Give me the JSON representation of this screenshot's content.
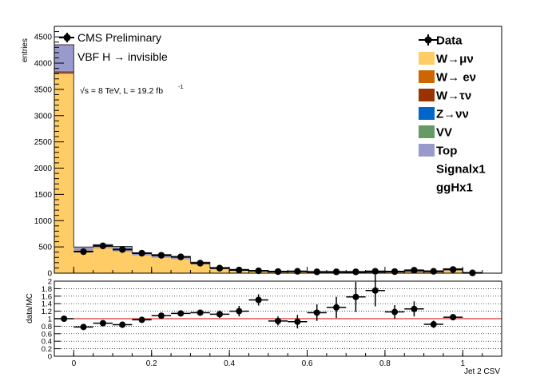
{
  "chart_data": [
    {
      "type": "bar",
      "stacked": true,
      "ylabel": "entries",
      "yticks": [
        0,
        500,
        1000,
        1500,
        2000,
        2500,
        3000,
        3500,
        4000,
        4500
      ],
      "ylim": [
        0,
        4700
      ],
      "xlim": [
        -0.05,
        1.1
      ],
      "bin_edges": [
        -0.05,
        0.0,
        0.05,
        0.1,
        0.15,
        0.2,
        0.25,
        0.3,
        0.35,
        0.4,
        0.45,
        0.5,
        0.55,
        0.6,
        0.65,
        0.7,
        0.75,
        0.8,
        0.85,
        0.9,
        0.95,
        1.0,
        1.05,
        1.1
      ],
      "series": [
        {
          "name": "W→μν",
          "color": "#ffcc66",
          "values": [
            3800,
            430,
            480,
            420,
            340,
            300,
            270,
            170,
            80,
            55,
            35,
            25,
            22,
            18,
            15,
            13,
            10,
            15,
            25,
            20,
            55,
            5,
            0
          ]
        },
        {
          "name": "W→ eν",
          "color": "#cc6600",
          "values": [
            0,
            0,
            0,
            0,
            0,
            0,
            0,
            0,
            0,
            0,
            0,
            0,
            0,
            0,
            0,
            0,
            0,
            0,
            0,
            0,
            0,
            0,
            0
          ]
        },
        {
          "name": "W→τν",
          "color": "#993300",
          "values": [
            30,
            5,
            5,
            5,
            4,
            4,
            4,
            3,
            2,
            1,
            1,
            1,
            1,
            1,
            1,
            0,
            0,
            0,
            0,
            0,
            1,
            0,
            0
          ]
        },
        {
          "name": "Z→νν",
          "color": "#0066cc",
          "values": [
            10,
            2,
            2,
            2,
            2,
            2,
            2,
            1,
            1,
            1,
            0,
            0,
            0,
            0,
            0,
            0,
            0,
            0,
            0,
            0,
            0,
            0,
            0
          ]
        },
        {
          "name": "VV",
          "color": "#669966",
          "values": [
            10,
            2,
            2,
            2,
            2,
            2,
            2,
            1,
            1,
            1,
            0,
            0,
            0,
            0,
            0,
            0,
            0,
            0,
            0,
            0,
            0,
            0,
            0
          ]
        },
        {
          "name": "Top",
          "color": "#9999cc",
          "values": [
            500,
            60,
            55,
            80,
            40,
            45,
            40,
            35,
            25,
            15,
            14,
            10,
            10,
            8,
            9,
            5,
            8,
            10,
            10,
            25,
            30,
            0,
            0
          ]
        }
      ],
      "data_points": {
        "name": "Data",
        "x": [
          0.025,
          0.075,
          0.125,
          0.175,
          0.225,
          0.275,
          0.325,
          0.375,
          0.425,
          0.475,
          0.525,
          0.575,
          0.625,
          0.675,
          0.725,
          0.775,
          0.825,
          0.875,
          0.925,
          0.975,
          1.025
        ],
        "y": [
          410,
          520,
          450,
          380,
          340,
          310,
          190,
          95,
          60,
          45,
          30,
          35,
          25,
          25,
          25,
          35,
          30,
          55,
          35,
          70,
          5
        ]
      },
      "legend": [
        "Data",
        "W→μν",
        "W→ eν",
        "W→τν",
        "Z→νν",
        "VV",
        "Top",
        "Signalx1",
        "ggHx1"
      ],
      "legend_placement": "top-right",
      "annotations": {
        "experiment": "CMS Preliminary",
        "process": "VBF H → invisible",
        "sqrt_s": "√s = 8 TeV, L = 19.2 fb",
        "lumi_exp": "-1"
      }
    },
    {
      "type": "scatter",
      "ylabel": "data/MC",
      "xlabel": "Jet 2 CSV",
      "ylim": [
        0,
        2
      ],
      "yticks": [
        0,
        0.2,
        0.4,
        0.6,
        0.8,
        1,
        1.2,
        1.4,
        1.6,
        1.8,
        2
      ],
      "xticks": [
        0,
        0.2,
        0.4,
        0.6,
        0.8,
        1
      ],
      "xlim": [
        -0.05,
        1.1
      ],
      "reference_line": 1,
      "grid": true,
      "x": [
        -0.025,
        0.025,
        0.075,
        0.125,
        0.175,
        0.225,
        0.275,
        0.325,
        0.375,
        0.425,
        0.475,
        0.525,
        0.575,
        0.625,
        0.675,
        0.725,
        0.775,
        0.825,
        0.875,
        0.925,
        0.975
      ],
      "y": [
        1.0,
        0.78,
        0.88,
        0.84,
        0.97,
        1.08,
        1.14,
        1.16,
        1.12,
        1.2,
        1.5,
        0.94,
        0.92,
        1.16,
        1.3,
        1.58,
        1.75,
        1.18,
        1.26,
        0.85,
        1.04
      ],
      "yerr": [
        0.02,
        0.05,
        0.05,
        0.05,
        0.05,
        0.06,
        0.06,
        0.08,
        0.1,
        0.14,
        0.15,
        0.12,
        0.18,
        0.22,
        0.28,
        0.4,
        0.42,
        0.18,
        0.2,
        0.1,
        0.08
      ]
    }
  ]
}
